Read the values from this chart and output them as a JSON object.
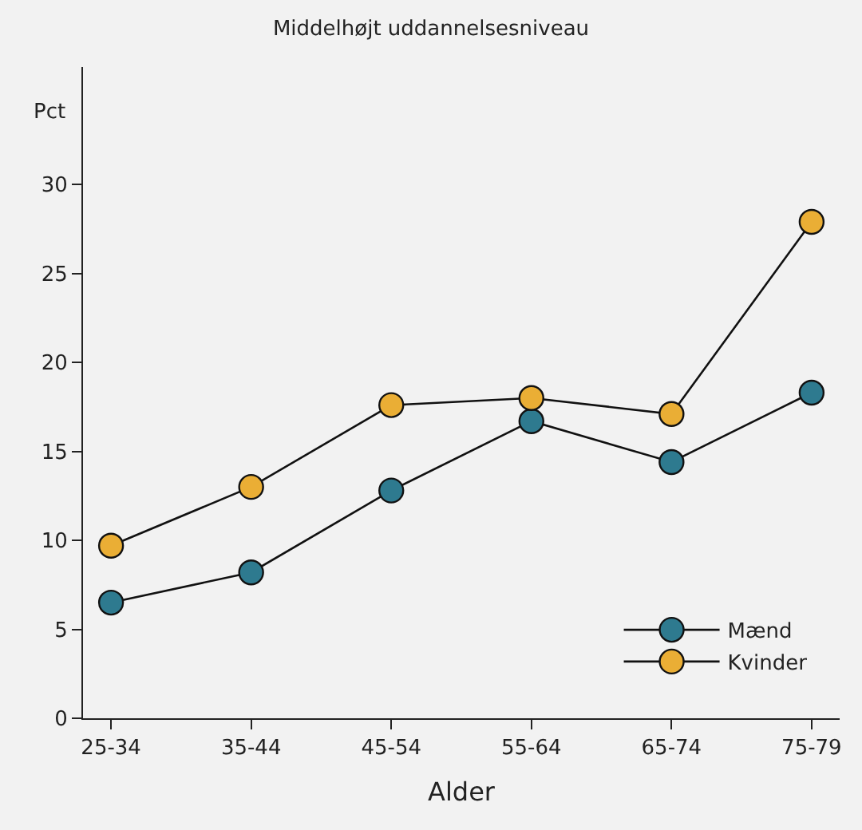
{
  "chart_data": {
    "type": "line",
    "title": "Middelhøjt uddannelsesniveau",
    "xlabel": "Alder",
    "ylabel": "Pct",
    "categories": [
      "25-34",
      "35-44",
      "45-54",
      "55-64",
      "65-74",
      "75-79"
    ],
    "series": [
      {
        "name": "Mænd",
        "color": "#2e7a8f",
        "values": [
          6.5,
          8.2,
          12.8,
          16.7,
          14.4,
          18.3
        ]
      },
      {
        "name": "Kvinder",
        "color": "#eaae35",
        "values": [
          9.7,
          13.0,
          17.6,
          18.0,
          17.1,
          27.9
        ]
      }
    ],
    "ylim": [
      0,
      36.6
    ],
    "yticks": [
      0,
      5,
      10,
      15,
      20,
      25,
      30
    ],
    "grid": false,
    "legend": "bottom right",
    "marker": "circle",
    "line_style": "solid"
  }
}
